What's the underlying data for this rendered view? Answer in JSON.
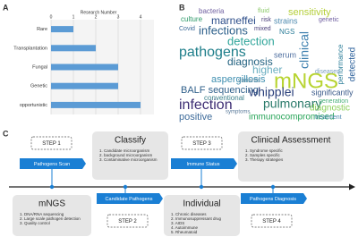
{
  "panel_labels": [
    "A",
    "B",
    "C"
  ],
  "chart_data": {
    "type": "bar",
    "orientation": "horizontal",
    "title": "Research Number",
    "categories": [
      "Rare",
      "Transplantation",
      "Fungal",
      "Genetic",
      "opportunistic"
    ],
    "values": [
      1,
      2,
      3,
      3,
      4
    ],
    "color": "#5b9bd5",
    "xlim": [
      0,
      4.6
    ],
    "xticks": [
      0,
      1,
      2,
      3,
      4
    ],
    "grid": true
  },
  "word_cloud": {
    "words": [
      {
        "text": "bacteria",
        "color": "#6f5fa0"
      },
      {
        "text": "fluid",
        "color": "#8cc96a"
      },
      {
        "text": "sensitivity",
        "color": "#b5cf3a"
      },
      {
        "text": "culture",
        "color": "#2f9a6a"
      },
      {
        "text": "marneffei",
        "color": "#2d4e8a"
      },
      {
        "text": "risk",
        "color": "#4a3f7a"
      },
      {
        "text": "strains",
        "color": "#4f8bb0"
      },
      {
        "text": "genetic",
        "color": "#6f5fa0"
      },
      {
        "text": "Covid",
        "color": "#3e6b9a"
      },
      {
        "text": "infections",
        "color": "#2c5f8a"
      },
      {
        "text": "mixed",
        "color": "#4a3f7a"
      },
      {
        "text": "NGS",
        "color": "#2f7f9a"
      },
      {
        "text": "detection",
        "color": "#2fa59a"
      },
      {
        "text": "clinical",
        "color": "#3d7fae"
      },
      {
        "text": "pathogens",
        "color": "#1e7e8a"
      },
      {
        "text": "serum",
        "color": "#4f6fa0"
      },
      {
        "text": "diagnosis",
        "color": "#1f5f7e"
      },
      {
        "text": "higher",
        "color": "#6aaec0"
      },
      {
        "text": "aspergillosis",
        "color": "#3f8fb0"
      },
      {
        "text": "mNGS",
        "color": "#b8d432"
      },
      {
        "text": "BALF sequencing",
        "color": "#2f5f8a"
      },
      {
        "text": "whipplei",
        "color": "#2a3f7a"
      },
      {
        "text": "significantly",
        "color": "#3a5a8a"
      },
      {
        "text": "infection",
        "color": "#3d2d73"
      },
      {
        "text": "pulmonary",
        "color": "#2a7a6a"
      },
      {
        "text": "positive",
        "color": "#3e6b9a"
      },
      {
        "text": "immunocompromised",
        "color": "#2aa55a"
      },
      {
        "text": "diagnostic",
        "color": "#8ccf5a"
      },
      {
        "text": "treatment",
        "color": "#4f8bb0"
      },
      {
        "text": "performance",
        "color": "#2f7f9a"
      },
      {
        "text": "detected",
        "color": "#2a5f9a"
      },
      {
        "text": "conventional",
        "color": "#3a7f8a"
      },
      {
        "text": "generation",
        "color": "#4ab07a"
      },
      {
        "text": "diseases",
        "color": "#7a9fc0"
      },
      {
        "text": "variants",
        "color": "#5a8aa0"
      },
      {
        "text": "symptoms",
        "color": "#5a7a9a"
      }
    ]
  },
  "workflow": {
    "steps": [
      {
        "label": "STEP 1",
        "tag": "Pathogens Scan"
      },
      {
        "label": "STEP 2",
        "tag": "Candidate Pathogens"
      },
      {
        "label": "STEP 3",
        "tag": "Immune Status"
      },
      {
        "label": "STEP 4",
        "tag": "Pathogens Diagnosis"
      }
    ],
    "boxes": [
      {
        "title": "Classify",
        "items": [
          "1. Candidate microorganism",
          "2. background microorganism",
          "3. Contaminative microorganism"
        ]
      },
      {
        "title": "Clinical Assessment",
        "items": [
          "1. Syndrome specific",
          "2. Samples specific",
          "3. Therapy strategies"
        ]
      },
      {
        "title": "mNGS",
        "items": [
          "1. DNA/RNA sequencing",
          "2. Large scale pathogen detection",
          "3. Quality control"
        ]
      },
      {
        "title": "Individual",
        "items": [
          "1. Chronic diseases",
          "2. Immunosuppressant drug",
          "3. AIDS",
          "4. Autoimmune",
          "5. Rheumatoid"
        ]
      }
    ]
  }
}
